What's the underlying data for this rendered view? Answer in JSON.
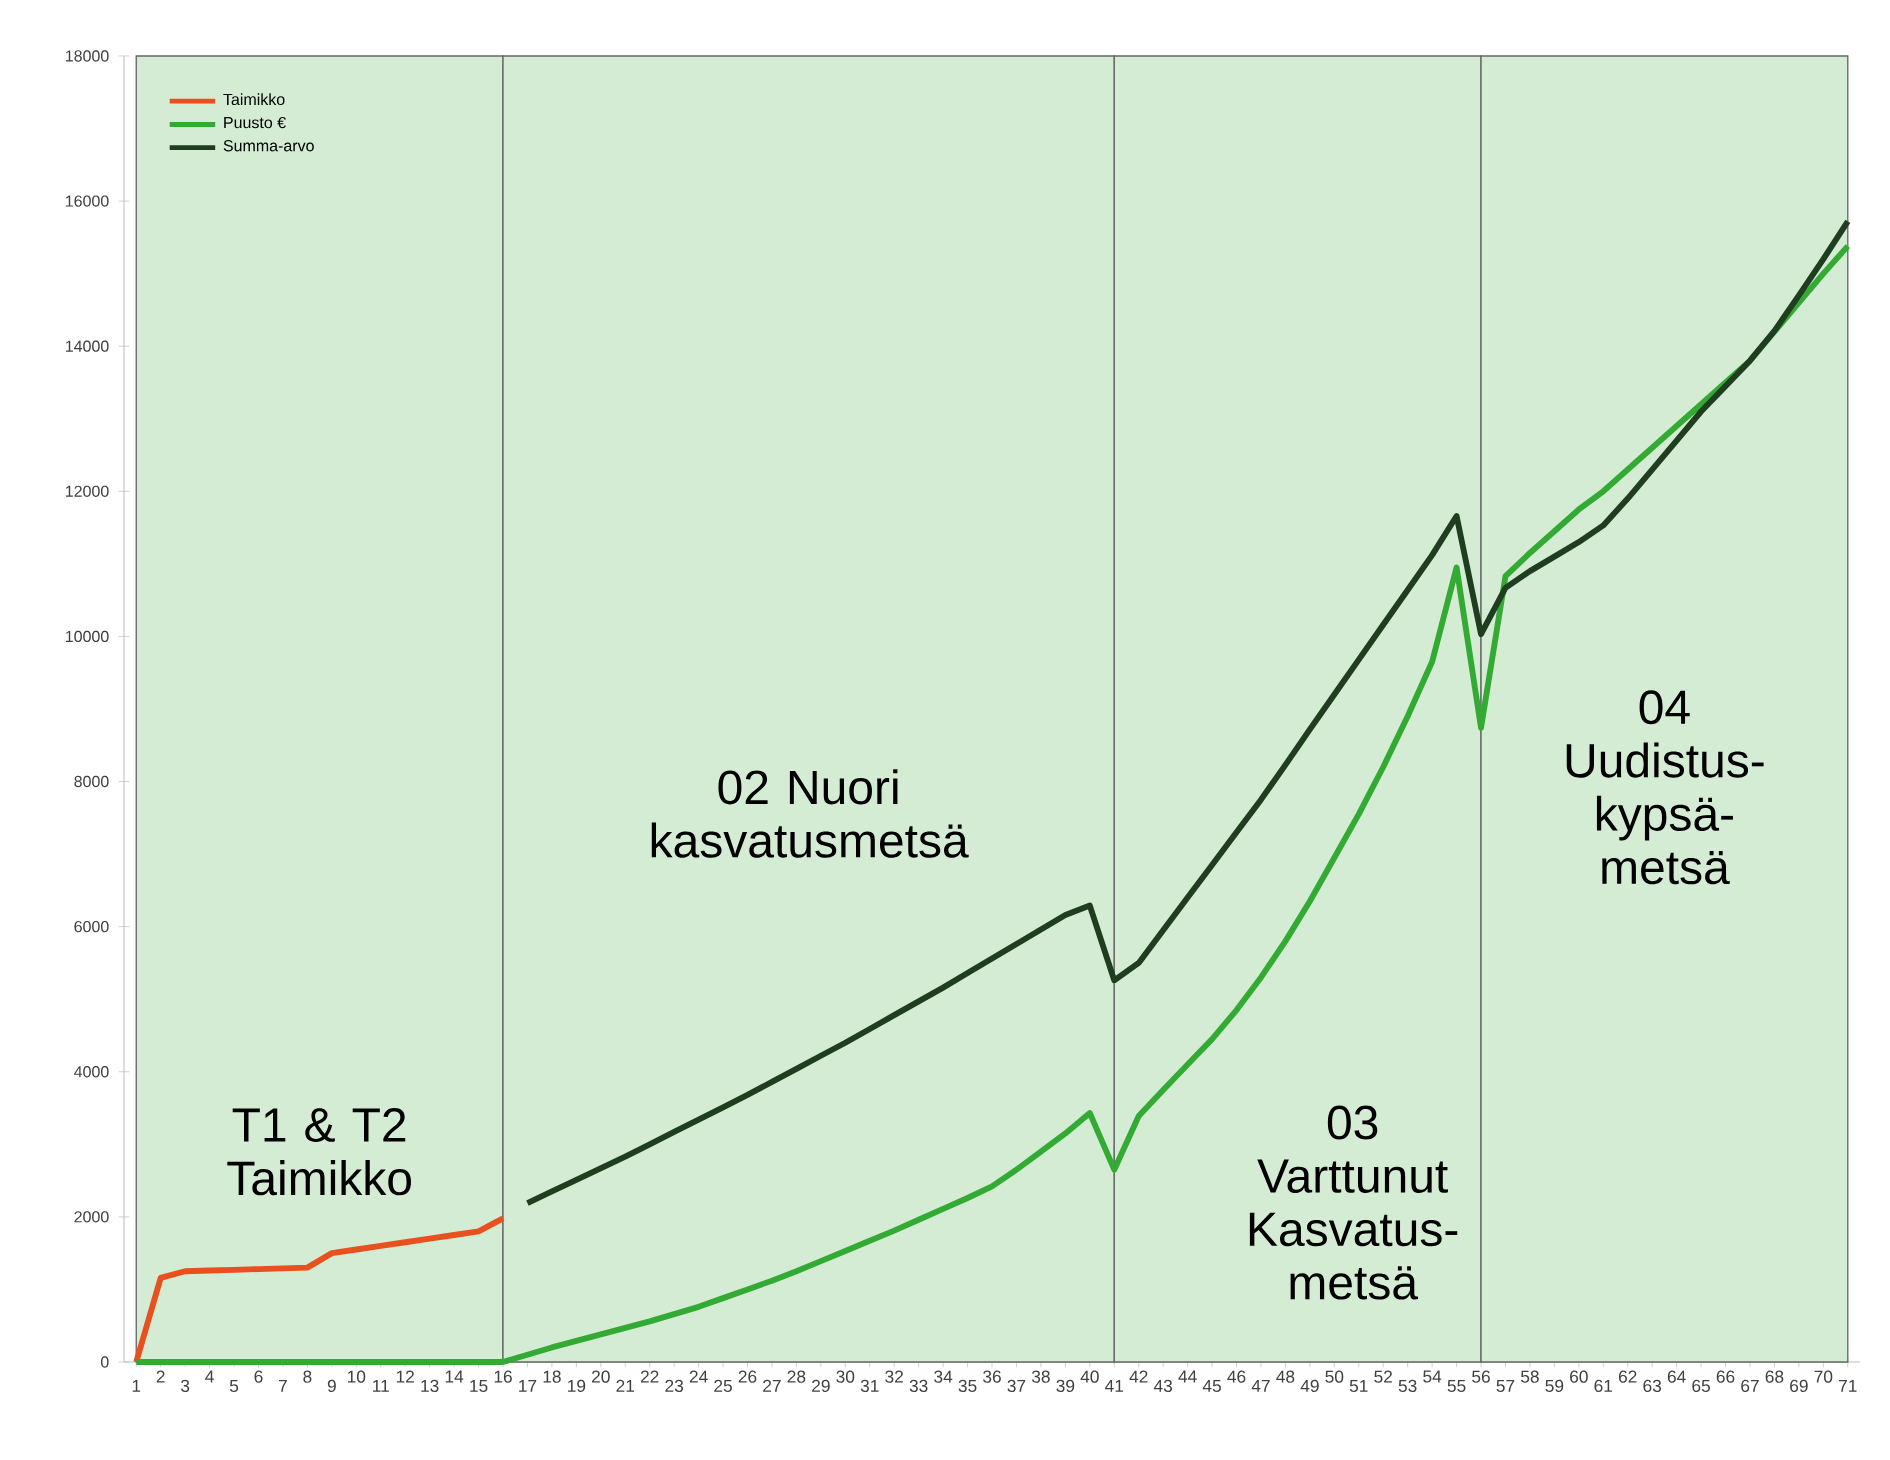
{
  "chart_data": {
    "type": "line",
    "categories": [
      "1",
      "2",
      "3",
      "4",
      "5",
      "6",
      "7",
      "8",
      "9",
      "10",
      "11",
      "12",
      "13",
      "14",
      "15",
      "16",
      "17",
      "18",
      "19",
      "20",
      "21",
      "22",
      "23",
      "24",
      "25",
      "26",
      "27",
      "28",
      "29",
      "30",
      "31",
      "32",
      "33",
      "34",
      "35",
      "36",
      "37",
      "38",
      "39",
      "40",
      "41",
      "42",
      "43",
      "44",
      "45",
      "46",
      "47",
      "48",
      "49",
      "50",
      "51",
      "52",
      "53",
      "54",
      "55",
      "56",
      "57",
      "58",
      "59",
      "60",
      "61",
      "62",
      "63",
      "64",
      "65",
      "66",
      "67",
      "68",
      "69",
      "70",
      "71"
    ],
    "series": [
      {
        "name": "Taimikko",
        "color": "#e8501e",
        "values": [
          0,
          1160,
          1250,
          1260,
          1270,
          1280,
          1290,
          1300,
          1500,
          1550,
          1600,
          1650,
          1700,
          1750,
          1800,
          1980,
          null,
          null,
          null,
          null,
          null,
          null,
          null,
          null,
          null,
          null,
          null,
          null,
          null,
          null,
          null,
          null,
          null,
          null,
          null,
          null,
          null,
          null,
          null,
          null,
          null,
          null,
          null,
          null,
          null,
          null,
          null,
          null,
          null,
          null,
          null,
          null,
          null,
          null,
          null,
          null,
          null,
          null,
          null,
          null,
          null,
          null,
          null,
          null,
          null,
          null,
          null,
          null,
          null,
          null,
          null
        ]
      },
      {
        "name": "Puusto €",
        "color": "#33aa33",
        "values": [
          0,
          0,
          0,
          0,
          0,
          0,
          0,
          0,
          0,
          0,
          0,
          0,
          0,
          0,
          0,
          0,
          100,
          200,
          290,
          380,
          470,
          560,
          660,
          760,
          880,
          1000,
          1120,
          1250,
          1390,
          1530,
          1670,
          1810,
          1960,
          2110,
          2260,
          2420,
          2650,
          2900,
          3150,
          3430,
          2650,
          3390,
          3750,
          4100,
          4450,
          4850,
          5300,
          5800,
          6350,
          6950,
          7550,
          8200,
          8900,
          9650,
          10950,
          8740,
          10830,
          11150,
          11450,
          11750,
          12000,
          12300,
          12600,
          12900,
          13200,
          13500,
          13800,
          14200,
          14600,
          15000,
          15380
        ]
      },
      {
        "name": "Summa-arvo",
        "color": "#1f3d1f",
        "values": [
          null,
          null,
          null,
          null,
          null,
          null,
          null,
          null,
          null,
          null,
          null,
          null,
          null,
          null,
          null,
          null,
          2190,
          2350,
          2510,
          2670,
          2830,
          3000,
          3170,
          3340,
          3510,
          3680,
          3860,
          4040,
          4220,
          4400,
          4590,
          4780,
          4970,
          5160,
          5360,
          5560,
          5760,
          5960,
          6160,
          6290,
          5260,
          5500,
          5950,
          6400,
          6850,
          7300,
          7750,
          8230,
          8720,
          9200,
          9680,
          10160,
          10640,
          11120,
          11660,
          10030,
          10670,
          10900,
          11100,
          11300,
          11530,
          11900,
          12300,
          12700,
          13100,
          13450,
          13800,
          14210,
          14700,
          15200,
          15720
        ]
      }
    ],
    "ylim": [
      0,
      18000
    ],
    "yticks": [
      0,
      2000,
      4000,
      6000,
      8000,
      10000,
      12000,
      14000,
      16000,
      18000
    ],
    "legend": "top left",
    "bands": [
      {
        "axis": "x",
        "from": "1",
        "to": "16",
        "label": "T1 & T2 Taimikko",
        "color": "#d5ecd4"
      },
      {
        "axis": "x",
        "from": "16",
        "to": "41",
        "label": "02 Nuori kasvatusmetsä",
        "color": "#d5ecd4"
      },
      {
        "axis": "x",
        "from": "41",
        "to": "56",
        "label": "03 Varttunut Kasvatus-metsä",
        "color": "#d5ecd4"
      },
      {
        "axis": "x",
        "from": "56",
        "to": "71",
        "label": "04 Uudistus-kypsä-metsä",
        "color": "#d5ecd4"
      }
    ]
  }
}
